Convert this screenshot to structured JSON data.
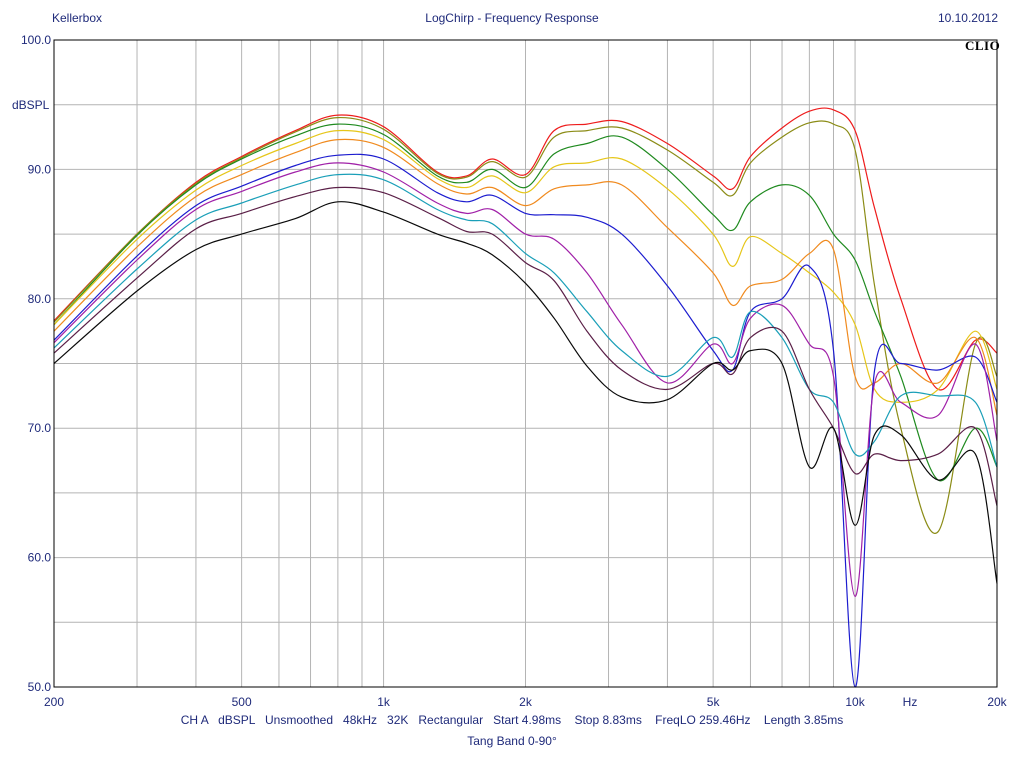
{
  "header": {
    "left": "Kellerbox",
    "title": "LogChirp - Frequency Response",
    "date": "10.10.2012",
    "logo": "CLIO"
  },
  "footer": {
    "settings": "CH A   dBSPL   Unsmoothed   48kHz   32K   Rectangular   Start 4.98ms    Stop 8.83ms    FreqLO 259.46Hz    Length 3.85ms",
    "caption": "Tang Band 0-90°"
  },
  "chart_data": {
    "type": "line",
    "title": "LogChirp - Frequency Response",
    "xlabel": "Hz",
    "ylabel": "dBSPL",
    "xscale": "log",
    "xlim": [
      200,
      20000
    ],
    "ylim": [
      50,
      100
    ],
    "grid": true,
    "x_tick_labels": [
      {
        "value": 200,
        "label": "200"
      },
      {
        "value": 500,
        "label": "500"
      },
      {
        "value": 1000,
        "label": "1k"
      },
      {
        "value": 2000,
        "label": "2k"
      },
      {
        "value": 5000,
        "label": "5k"
      },
      {
        "value": 10000,
        "label": "10k"
      },
      {
        "value": 20000,
        "label": "20k"
      }
    ],
    "y_tick_labels": [
      {
        "value": 100,
        "label": "100.0"
      },
      {
        "value": 90,
        "label": "90.0"
      },
      {
        "value": 80,
        "label": "80.0"
      },
      {
        "value": 70,
        "label": "70.0"
      },
      {
        "value": 60,
        "label": "60.0"
      },
      {
        "value": 50,
        "label": "50.0"
      }
    ],
    "x": [
      200,
      300,
      400,
      500,
      650,
      800,
      1000,
      1300,
      1500,
      1700,
      2000,
      2300,
      2700,
      3200,
      4000,
      5000,
      5500,
      6000,
      7000,
      8000,
      9000,
      10000,
      11000,
      12500,
      15000,
      18000,
      20000
    ],
    "series": [
      {
        "color": "#ee1c1c",
        "values": [
          78.3,
          85.0,
          89.0,
          91.0,
          93.0,
          94.2,
          93.3,
          89.8,
          89.5,
          90.8,
          89.6,
          93.0,
          93.5,
          93.7,
          92.0,
          89.5,
          88.5,
          91.0,
          93.2,
          94.5,
          94.6,
          93.0,
          87.0,
          80.0,
          73.0,
          76.8,
          75.8
        ]
      },
      {
        "color": "#8b8c16",
        "values": [
          78.2,
          85.0,
          88.9,
          90.9,
          92.9,
          94.0,
          93.1,
          89.7,
          89.4,
          90.6,
          89.4,
          92.5,
          93.0,
          93.2,
          91.5,
          89.0,
          88.0,
          90.5,
          92.5,
          93.6,
          93.5,
          91.5,
          81.0,
          70.0,
          62.0,
          76.5,
          74.0
        ]
      },
      {
        "color": "#1f8a1f",
        "values": [
          78.0,
          84.9,
          88.8,
          90.8,
          92.6,
          93.5,
          92.7,
          89.5,
          89.0,
          90.0,
          88.6,
          91.2,
          92.0,
          92.5,
          90.0,
          86.5,
          85.3,
          87.5,
          88.8,
          88.0,
          85.0,
          83.0,
          79.0,
          74.0,
          66.0,
          70.0,
          67.0
        ]
      },
      {
        "color": "#e6c619",
        "values": [
          78.0,
          84.6,
          88.4,
          90.3,
          92.0,
          93.0,
          92.3,
          89.3,
          88.6,
          89.5,
          88.2,
          90.2,
          90.5,
          90.8,
          88.5,
          85.0,
          82.5,
          84.8,
          83.5,
          82.0,
          80.5,
          78.0,
          73.0,
          72.0,
          73.0,
          77.5,
          73.0
        ]
      },
      {
        "color": "#f08a1e",
        "values": [
          77.5,
          84.0,
          87.9,
          89.6,
          91.3,
          92.3,
          91.7,
          88.9,
          88.1,
          88.6,
          87.2,
          88.5,
          88.8,
          88.8,
          85.5,
          82.0,
          79.5,
          81.0,
          81.5,
          83.5,
          83.8,
          74.0,
          73.5,
          75.0,
          73.5,
          77.0,
          71.0
        ]
      },
      {
        "color": "#1c1ccf",
        "values": [
          76.8,
          83.3,
          87.2,
          88.7,
          90.3,
          91.1,
          90.8,
          88.2,
          87.5,
          88.0,
          86.6,
          86.5,
          86.3,
          85.0,
          81.0,
          76.0,
          74.5,
          79.0,
          80.0,
          82.5,
          76.0,
          50.0,
          74.5,
          75.0,
          74.5,
          75.5,
          72.0
        ]
      },
      {
        "color": "#a020a8",
        "values": [
          76.6,
          83.0,
          86.9,
          88.3,
          89.8,
          90.5,
          89.8,
          87.4,
          86.6,
          86.9,
          85.0,
          84.6,
          82.0,
          78.0,
          73.5,
          76.5,
          75.0,
          78.5,
          79.5,
          76.5,
          74.0,
          57.0,
          73.5,
          72.0,
          71.0,
          76.5,
          69.0
        ]
      },
      {
        "color": "#1a9fb8",
        "values": [
          76.2,
          82.3,
          86.1,
          87.4,
          88.8,
          89.6,
          89.2,
          86.9,
          86.1,
          85.8,
          83.5,
          82.0,
          79.0,
          76.0,
          74.0,
          77.0,
          75.5,
          79.0,
          77.0,
          73.0,
          72.0,
          68.0,
          69.0,
          72.5,
          72.5,
          72.0,
          67.0
        ]
      },
      {
        "color": "#5a1f47",
        "values": [
          75.8,
          81.6,
          85.4,
          86.6,
          87.9,
          88.6,
          88.2,
          86.3,
          85.2,
          85.0,
          82.8,
          81.4,
          77.5,
          74.5,
          73.0,
          75.0,
          74.2,
          77.0,
          77.5,
          73.0,
          70.0,
          66.5,
          68.0,
          67.5,
          68.0,
          70.0,
          64.0
        ]
      },
      {
        "color": "#0a0a0a",
        "values": [
          75.0,
          80.6,
          83.8,
          85.0,
          86.2,
          87.5,
          86.7,
          85.0,
          84.3,
          83.4,
          81.2,
          78.5,
          74.8,
          72.4,
          72.2,
          75.0,
          74.5,
          76.0,
          75.0,
          67.0,
          70.0,
          62.5,
          69.5,
          69.5,
          66.0,
          68.0,
          58.0
        ]
      }
    ]
  }
}
